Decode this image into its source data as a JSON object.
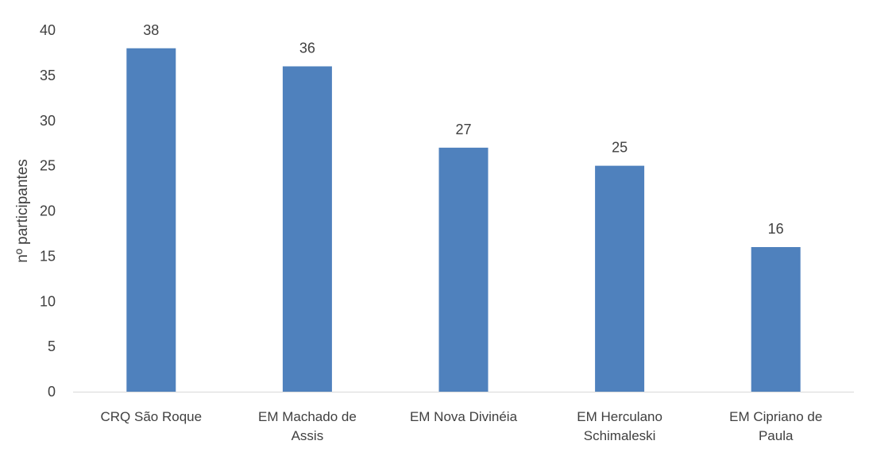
{
  "chart_data": {
    "type": "bar",
    "categories": [
      [
        "CRQ São Roque"
      ],
      [
        "EM Machado de",
        "Assis"
      ],
      [
        "EM Nova Divinéia"
      ],
      [
        "EM Herculano",
        "Schimaleski"
      ],
      [
        "EM Cipriano de",
        "Paula"
      ]
    ],
    "values": [
      38,
      36,
      27,
      25,
      16
    ],
    "ylabel": "nº participantes",
    "ylim": [
      0,
      40
    ],
    "yticks": [
      0,
      5,
      10,
      15,
      20,
      25,
      30,
      35,
      40
    ],
    "grid": false,
    "legend": "none",
    "bar_color": "#4f81bd"
  }
}
